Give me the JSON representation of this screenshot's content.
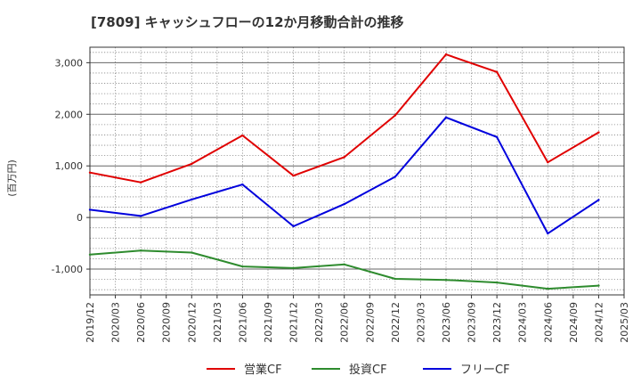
{
  "chart_data": {
    "type": "line",
    "title": "[7809]  キャッシュフローの12か月移動合計の推移",
    "xlabel": "",
    "ylabel": "(百万円)",
    "x": [
      "2019/12",
      "2020/03",
      "2020/06",
      "2020/09",
      "2020/12",
      "2021/03",
      "2021/06",
      "2021/09",
      "2021/12",
      "2022/03",
      "2022/06",
      "2022/09",
      "2022/12",
      "2023/03",
      "2023/06",
      "2023/09",
      "2023/12",
      "2024/03",
      "2024/06",
      "2024/09",
      "2024/12",
      "2025/03"
    ],
    "ylim": [
      -1500,
      3300
    ],
    "yticks": [
      -1000,
      0,
      1000,
      2000,
      3000
    ],
    "ytick_labels": [
      "-1,000",
      "0",
      "1,000",
      "2,000",
      "3,000"
    ],
    "grid": true,
    "legend_position": "bottom",
    "series": [
      {
        "name": "営業CF",
        "color": "#e00000",
        "points": [
          [
            "2019/12",
            870
          ],
          [
            "2020/06",
            680
          ],
          [
            "2020/12",
            1040
          ],
          [
            "2021/06",
            1590
          ],
          [
            "2021/12",
            810
          ],
          [
            "2022/06",
            1170
          ],
          [
            "2022/12",
            1980
          ],
          [
            "2023/06",
            3160
          ],
          [
            "2023/12",
            2820
          ],
          [
            "2024/06",
            1070
          ],
          [
            "2024/12",
            1650
          ]
        ]
      },
      {
        "name": "投資CF",
        "color": "#2e8b2e",
        "points": [
          [
            "2019/12",
            -720
          ],
          [
            "2020/06",
            -640
          ],
          [
            "2020/12",
            -680
          ],
          [
            "2021/06",
            -950
          ],
          [
            "2021/12",
            -980
          ],
          [
            "2022/06",
            -910
          ],
          [
            "2022/12",
            -1190
          ],
          [
            "2023/06",
            -1210
          ],
          [
            "2023/12",
            -1260
          ],
          [
            "2024/06",
            -1380
          ],
          [
            "2024/12",
            -1320
          ]
        ]
      },
      {
        "name": "フリーCF",
        "color": "#0000dd",
        "points": [
          [
            "2019/12",
            150
          ],
          [
            "2020/06",
            30
          ],
          [
            "2020/12",
            350
          ],
          [
            "2021/06",
            640
          ],
          [
            "2021/12",
            -170
          ],
          [
            "2022/06",
            260
          ],
          [
            "2022/12",
            790
          ],
          [
            "2023/06",
            1940
          ],
          [
            "2023/12",
            1560
          ],
          [
            "2024/06",
            -310
          ],
          [
            "2024/12",
            340
          ]
        ]
      }
    ]
  }
}
